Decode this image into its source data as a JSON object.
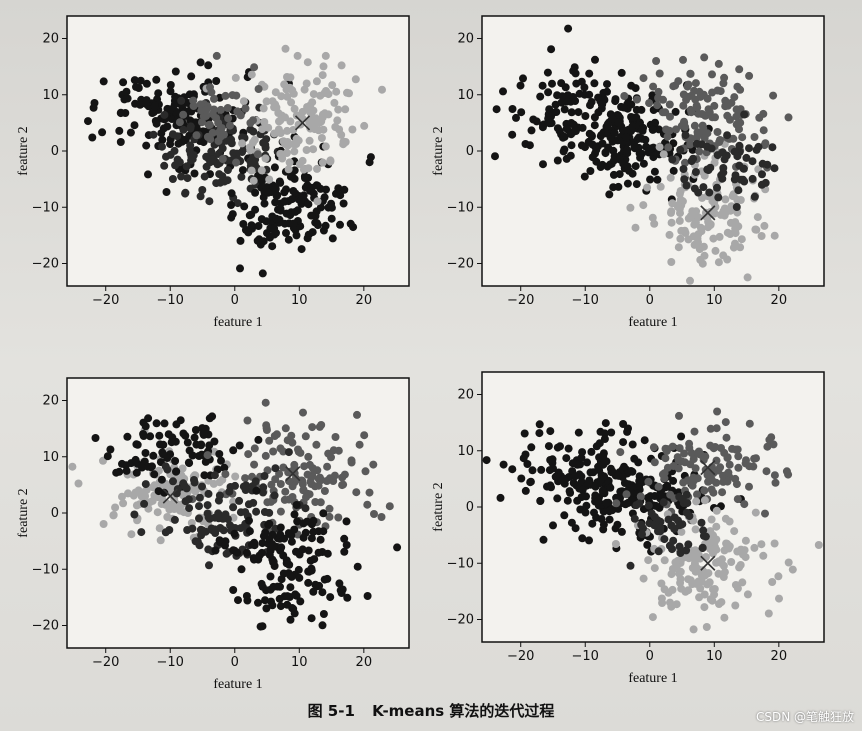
{
  "caption": {
    "number": "图 5-1",
    "title": "K-means 算法的迭代过程"
  },
  "watermark": "CSDN @笔触狂放",
  "colors": {
    "cluster_dark": "#141414",
    "cluster_darkgray": "#2a2a2a",
    "cluster_midgray": "#5a5a5a",
    "cluster_lightgray": "#a8a8a8",
    "centroid": "#333333"
  },
  "chart_data": [
    {
      "type": "scatter",
      "title": "",
      "xlabel": "feature 1",
      "ylabel": "feature 2",
      "xlim": [
        -26,
        27
      ],
      "ylim": [
        -24,
        24
      ],
      "xticks": [
        -20,
        -10,
        0,
        10,
        20
      ],
      "yticks": [
        -20,
        -10,
        0,
        10,
        20
      ],
      "centroids": [
        {
          "x": 10.5,
          "y": 5
        }
      ],
      "clusters": [
        {
          "cx": -10,
          "cy": 6,
          "sx": 6,
          "sy": 4.5,
          "n": 160,
          "shade": "cluster_dark"
        },
        {
          "cx": -2,
          "cy": 0,
          "sx": 5,
          "sy": 4,
          "n": 120,
          "shade": "cluster_darkgray"
        },
        {
          "cx": 9,
          "cy": -10,
          "sx": 5,
          "sy": 4.5,
          "n": 150,
          "shade": "cluster_dark"
        },
        {
          "cx": 10,
          "cy": 5,
          "sx": 5,
          "sy": 5,
          "n": 140,
          "shade": "cluster_lightgray"
        },
        {
          "cx": -3,
          "cy": 7,
          "sx": 3,
          "sy": 3,
          "n": 50,
          "shade": "cluster_midgray"
        }
      ]
    },
    {
      "type": "scatter",
      "title": "",
      "xlabel": "feature 1",
      "ylabel": "feature 2",
      "xlim": [
        -26,
        27
      ],
      "ylim": [
        -24,
        24
      ],
      "xticks": [
        -20,
        -10,
        0,
        10,
        20
      ],
      "yticks": [
        -20,
        -10,
        0,
        10,
        20
      ],
      "centroids": [
        {
          "x": 9,
          "y": -11
        }
      ],
      "clusters": [
        {
          "cx": -10,
          "cy": 6,
          "sx": 6,
          "sy": 4.5,
          "n": 150,
          "shade": "cluster_dark"
        },
        {
          "cx": -3,
          "cy": 1,
          "sx": 5,
          "sy": 4,
          "n": 130,
          "shade": "cluster_dark"
        },
        {
          "cx": 9,
          "cy": -11,
          "sx": 4.5,
          "sy": 4.5,
          "n": 140,
          "shade": "cluster_lightgray"
        },
        {
          "cx": 9,
          "cy": 6,
          "sx": 5,
          "sy": 4.5,
          "n": 130,
          "shade": "cluster_midgray"
        },
        {
          "cx": 12,
          "cy": -3,
          "sx": 4,
          "sy": 3,
          "n": 60,
          "shade": "cluster_darkgray"
        }
      ]
    },
    {
      "type": "scatter",
      "title": "",
      "xlabel": "feature 1",
      "ylabel": "feature 2",
      "xlim": [
        -26,
        27
      ],
      "ylim": [
        -24,
        24
      ],
      "xticks": [
        -20,
        -10,
        0,
        10,
        20
      ],
      "yticks": [
        -20,
        -10,
        0,
        10,
        20
      ],
      "centroids": [
        {
          "x": -10,
          "y": 3
        },
        {
          "x": 9,
          "y": 7
        }
      ],
      "clusters": [
        {
          "cx": -10,
          "cy": 3,
          "sx": 5,
          "sy": 4,
          "n": 130,
          "shade": "cluster_lightgray"
        },
        {
          "cx": -9,
          "cy": 11,
          "sx": 6,
          "sy": 3,
          "n": 90,
          "shade": "cluster_dark"
        },
        {
          "cx": 9,
          "cy": 7,
          "sx": 5,
          "sy": 5,
          "n": 130,
          "shade": "cluster_midgray"
        },
        {
          "cx": -2,
          "cy": 0,
          "sx": 5,
          "sy": 4,
          "n": 110,
          "shade": "cluster_darkgray"
        },
        {
          "cx": 8,
          "cy": -9,
          "sx": 5,
          "sy": 5,
          "n": 150,
          "shade": "cluster_dark"
        }
      ]
    },
    {
      "type": "scatter",
      "title": "",
      "xlabel": "feature 1",
      "ylabel": "feature 2",
      "xlim": [
        -26,
        27
      ],
      "ylim": [
        -24,
        24
      ],
      "xticks": [
        -20,
        -10,
        0,
        10,
        20
      ],
      "yticks": [
        -20,
        -10,
        0,
        10,
        20
      ],
      "centroids": [
        {
          "x": 9,
          "y": 7
        },
        {
          "x": 9,
          "y": -10
        }
      ],
      "clusters": [
        {
          "cx": -10,
          "cy": 6,
          "sx": 6,
          "sy": 4.5,
          "n": 150,
          "shade": "cluster_dark"
        },
        {
          "cx": -2,
          "cy": 2,
          "sx": 5,
          "sy": 4,
          "n": 140,
          "shade": "cluster_dark"
        },
        {
          "cx": 9,
          "cy": 7,
          "sx": 5,
          "sy": 4,
          "n": 120,
          "shade": "cluster_midgray"
        },
        {
          "cx": 9,
          "cy": -10,
          "sx": 5,
          "sy": 5,
          "n": 150,
          "shade": "cluster_lightgray"
        },
        {
          "cx": 3,
          "cy": -4,
          "sx": 3,
          "sy": 3,
          "n": 50,
          "shade": "cluster_darkgray"
        }
      ]
    }
  ]
}
